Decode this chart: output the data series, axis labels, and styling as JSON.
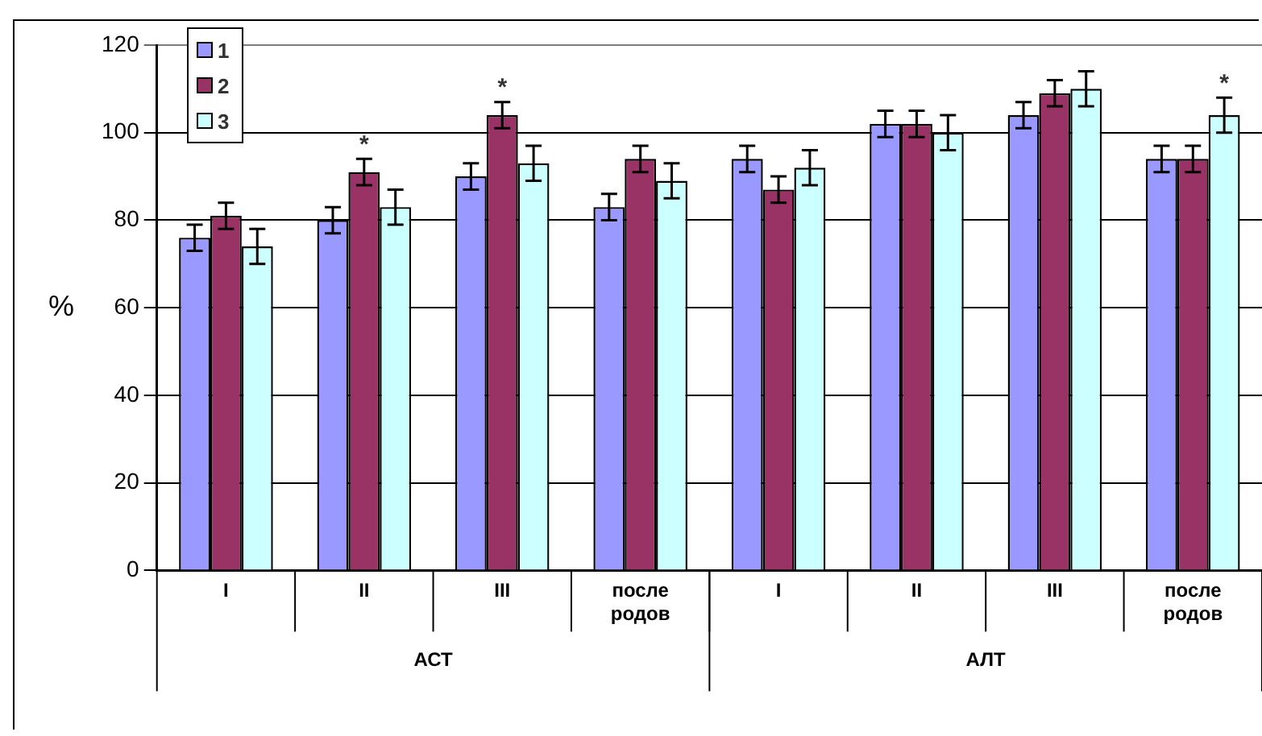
{
  "chart_data": {
    "type": "bar",
    "ylabel": "%",
    "categories": [
      "I",
      "II",
      "III",
      "после родов",
      "I",
      "II",
      "III",
      "после родов"
    ],
    "series": [
      {
        "name": "1",
        "color": "#9999ff",
        "values": [
          76,
          80,
          90,
          83,
          94,
          102,
          104,
          94
        ],
        "errors": [
          3,
          3,
          3,
          3,
          3,
          3,
          3,
          3
        ]
      },
      {
        "name": "2",
        "color": "#993366",
        "values": [
          81,
          91,
          104,
          94,
          87,
          102,
          109,
          94
        ],
        "errors": [
          3,
          3,
          3,
          3,
          3,
          3,
          3,
          3
        ],
        "value_labels": [
          null,
          "*",
          "*",
          null,
          null,
          null,
          null,
          null
        ]
      },
      {
        "name": "3",
        "color": "#ccffff",
        "values": [
          74,
          83,
          93,
          89,
          92,
          100,
          110,
          104
        ],
        "errors": [
          4,
          4,
          4,
          4,
          4,
          4,
          4,
          4
        ],
        "value_labels": [
          null,
          null,
          null,
          null,
          null,
          null,
          null,
          "*"
        ]
      }
    ],
    "annotations": [
      "АСТ",
      "АЛТ"
    ],
    "ylim": [
      0,
      120
    ],
    "yticks": [
      0,
      20,
      40,
      60,
      80,
      100,
      120
    ],
    "grid": "y",
    "legend": "top left"
  }
}
